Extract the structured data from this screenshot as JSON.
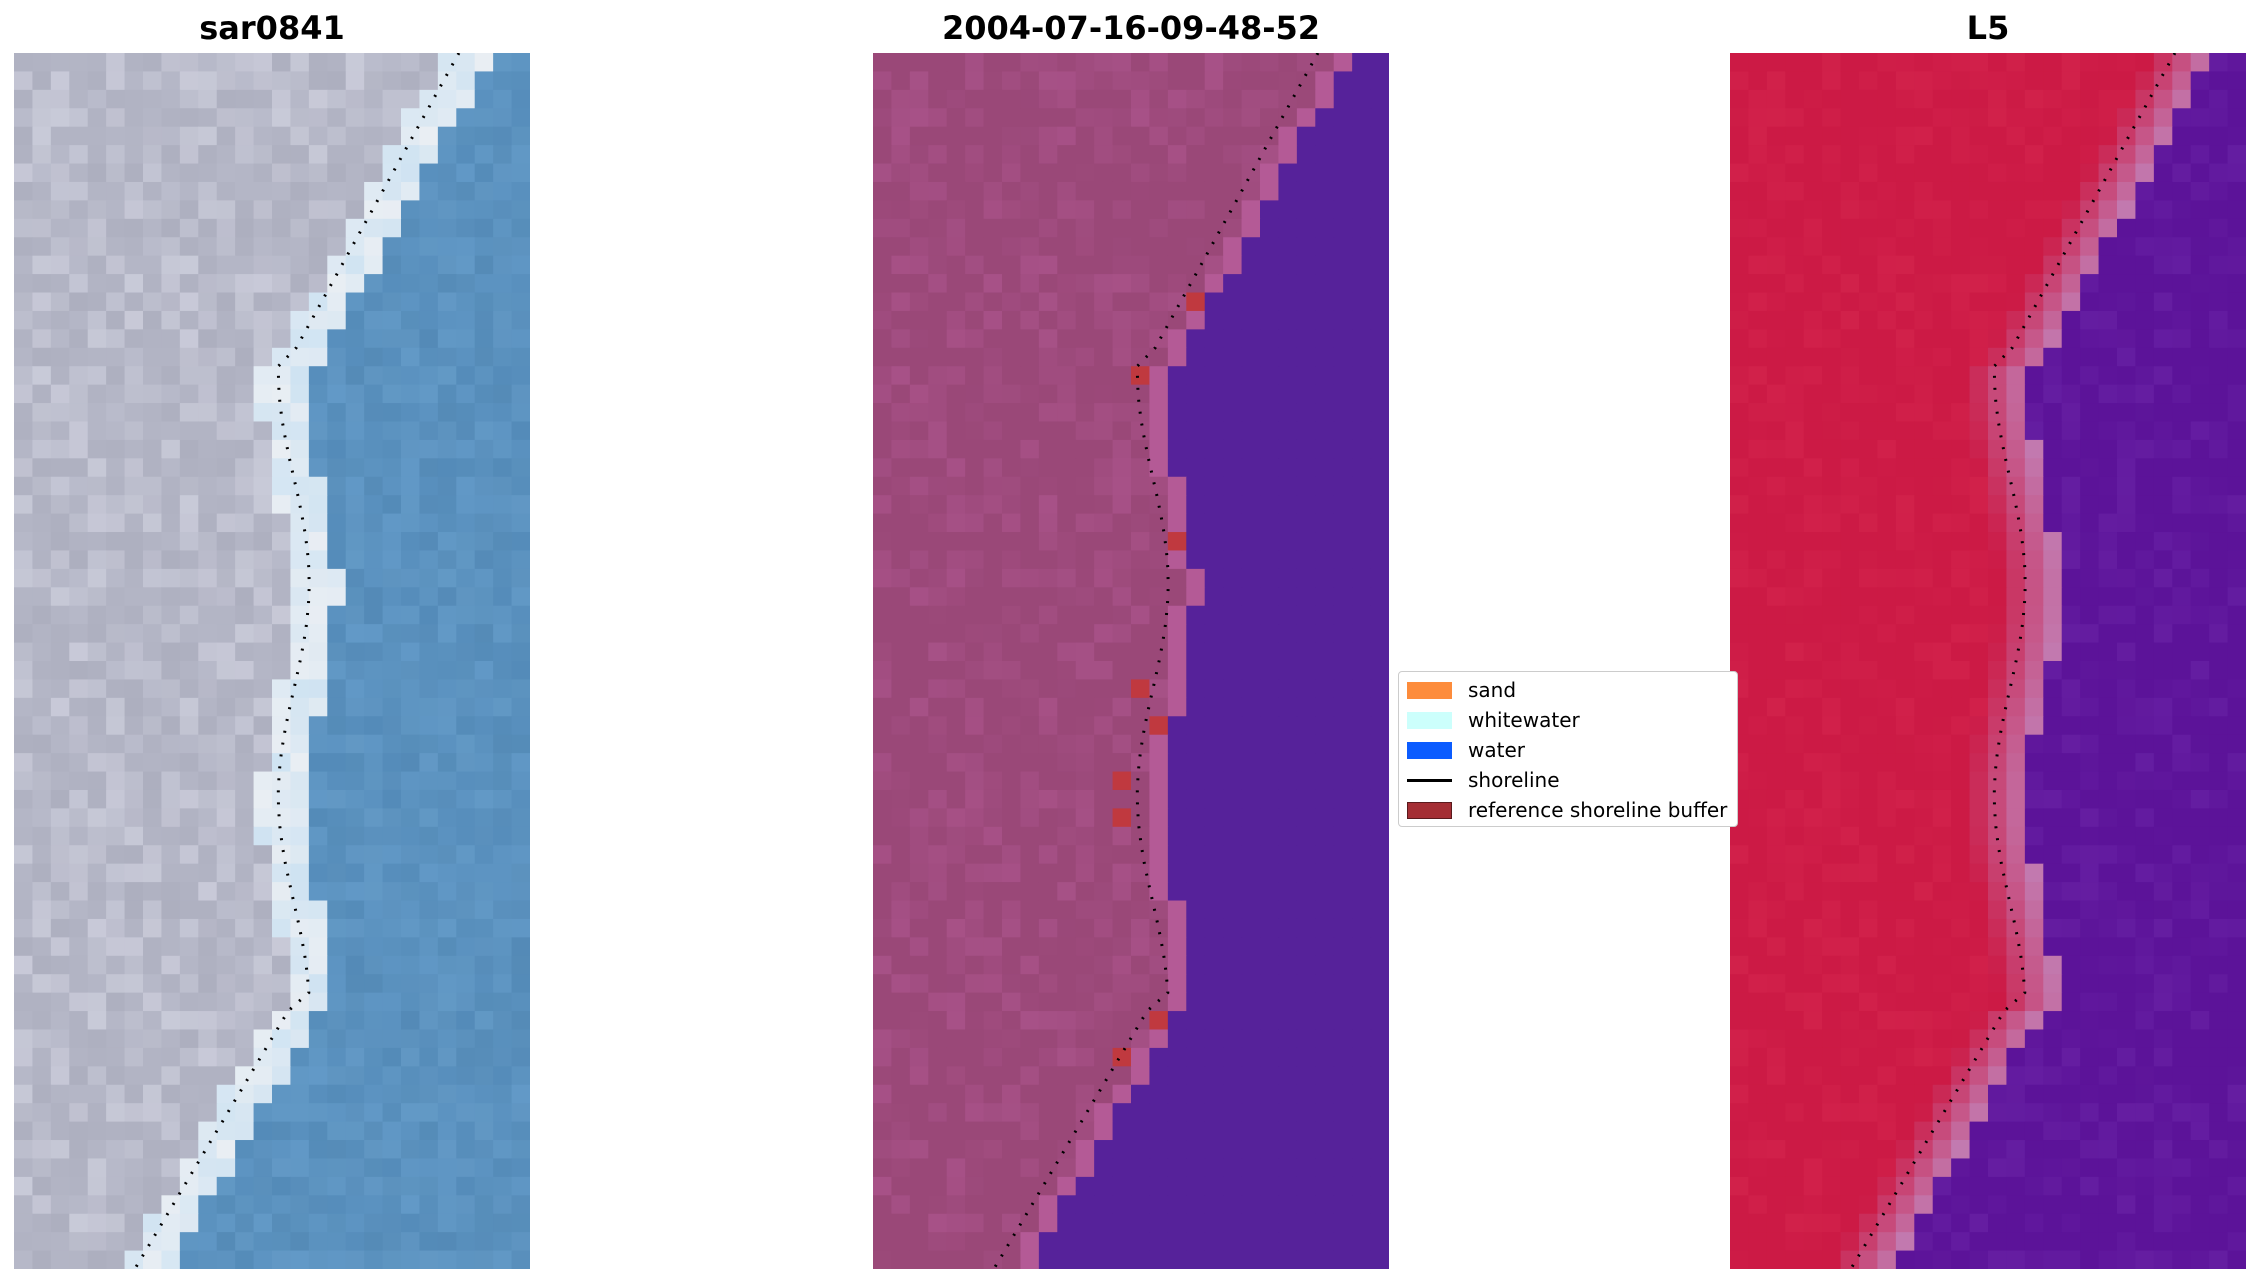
{
  "panels": [
    {
      "title": "sar0841",
      "palette": "rgb"
    },
    {
      "title": "2004-07-16-09-48-52",
      "palette": "classified"
    },
    {
      "title": "L5",
      "palette": "index"
    }
  ],
  "legend": {
    "items": [
      {
        "label": "sand",
        "color": "#fd8c3c",
        "kind": "patch"
      },
      {
        "label": "whitewater",
        "color": "#ccfffc",
        "kind": "patch"
      },
      {
        "label": "water",
        "color": "#0b5cff",
        "kind": "patch"
      },
      {
        "label": "shoreline",
        "color": "#000000",
        "kind": "line"
      },
      {
        "label": "reference shoreline buffer",
        "color": "#a42e34",
        "kind": "patch"
      }
    ]
  },
  "colors": {
    "rgb_land": "#b4b6c6",
    "rgb_water": "#5b91bd",
    "classified_land": "#9a4878",
    "classified_water": "#56229a",
    "classified_buffer": "#c0393f",
    "index_land": "#cc1a45",
    "index_water": "#5c1399",
    "index_transition": "#c27ab0"
  }
}
